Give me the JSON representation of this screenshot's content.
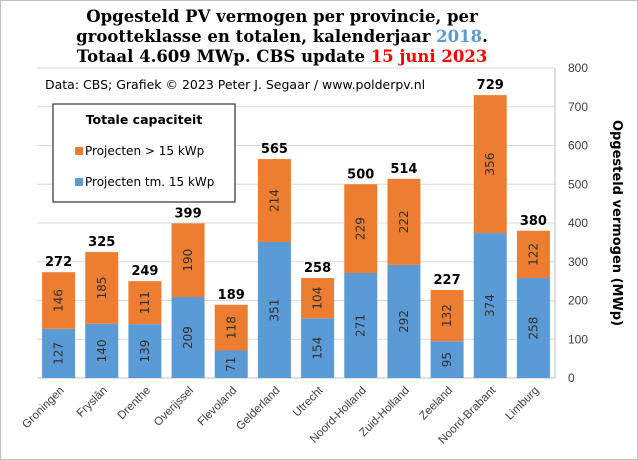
{
  "chart_data": {
    "type": "bar",
    "stacked": true,
    "title": "Opgesteld PV vermogen per provincie, per grootteklasse en totalen, kalenderjaar 2018. Totaal 4.609 MWp. CBS update 15 juni 2023",
    "title_lines": [
      [
        {
          "text": "Opgesteld PV vermogen per provincie, per",
          "style": "black"
        }
      ],
      [
        {
          "text": "grootteklasse en totalen, kalenderjaar ",
          "style": "black"
        },
        {
          "text": "2018",
          "style": "blue"
        },
        {
          "text": ".",
          "style": "black"
        }
      ],
      [
        {
          "text": "Totaal 4.609 MWp. CBS update ",
          "style": "black"
        },
        {
          "text": "15 juni 2023",
          "style": "red"
        }
      ]
    ],
    "source": "Data: CBS; Grafiek © 2023 Peter J. Segaar / www.polderpv.nl",
    "ylabel": "Opgesteld vermogen (MWp)",
    "xlabel": "",
    "ylim": [
      0,
      800
    ],
    "yticks": [
      0,
      100,
      200,
      300,
      400,
      500,
      600,
      700,
      800
    ],
    "y_axis_side": "right",
    "grid": true,
    "categories": [
      "Groningen",
      "Fryslân",
      "Drenthe",
      "Overijssel",
      "Flevoland",
      "Gelderland",
      "Utrecht",
      "Noord-Holland",
      "Zuid-Holland",
      "Zeeland",
      "Noord-Brabant",
      "Limburg"
    ],
    "series": [
      {
        "name": "Projecten tm. 15 kWp",
        "color": "#5b9bd5",
        "values": [
          127,
          140,
          139,
          209,
          71,
          351,
          154,
          271,
          292,
          95,
          374,
          258
        ]
      },
      {
        "name": "Projecten > 15 kWp",
        "color": "#ed7d31",
        "values": [
          146,
          185,
          111,
          190,
          118,
          214,
          104,
          229,
          222,
          132,
          356,
          122
        ]
      }
    ],
    "totals": [
      272,
      325,
      249,
      399,
      189,
      565,
      258,
      500,
      514,
      227,
      729,
      380
    ],
    "legend": {
      "title": "Totale capaciteit",
      "position": "top-left",
      "order": [
        "Projecten > 15 kWp",
        "Projecten tm. 15 kWp"
      ]
    },
    "colors": {
      "grid": "#d9d9d9",
      "axis": "#bfbfbf",
      "blue_accent": "#5b9bd5",
      "red_accent": "#ff0000"
    }
  }
}
